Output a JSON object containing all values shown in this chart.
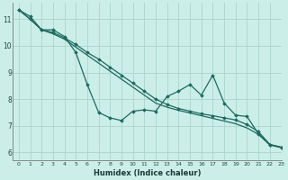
{
  "xlabel": "Humidex (Indice chaleur)",
  "bg_color": "#cceee8",
  "grid_color": "#aad4cc",
  "line_color": "#1a6b60",
  "xlim": [
    -0.5,
    23
  ],
  "ylim": [
    5.7,
    11.6
  ],
  "yticks": [
    6,
    7,
    8,
    9,
    10,
    11
  ],
  "xticks": [
    0,
    1,
    2,
    3,
    4,
    5,
    6,
    7,
    8,
    9,
    10,
    11,
    12,
    13,
    14,
    15,
    16,
    17,
    18,
    19,
    20,
    21,
    22,
    23
  ],
  "series_wavy": [
    11.35,
    11.1,
    10.6,
    10.6,
    10.35,
    9.75,
    8.55,
    7.5,
    7.3,
    7.2,
    7.55,
    7.6,
    7.55,
    8.1,
    8.3,
    8.55,
    8.15,
    8.9,
    7.85,
    7.4,
    7.35,
    6.7,
    6.3,
    6.2
  ],
  "series_upper": [
    11.35,
    11.0,
    10.6,
    10.5,
    10.3,
    10.05,
    9.75,
    9.5,
    9.2,
    8.9,
    8.6,
    8.3,
    8.0,
    7.8,
    7.65,
    7.55,
    7.45,
    7.38,
    7.3,
    7.22,
    7.05,
    6.78,
    6.3,
    6.2
  ],
  "series_lower": [
    11.35,
    11.0,
    10.6,
    10.45,
    10.25,
    9.95,
    9.65,
    9.35,
    9.05,
    8.75,
    8.45,
    8.15,
    7.85,
    7.7,
    7.58,
    7.48,
    7.38,
    7.28,
    7.18,
    7.08,
    6.92,
    6.68,
    6.28,
    6.18
  ]
}
